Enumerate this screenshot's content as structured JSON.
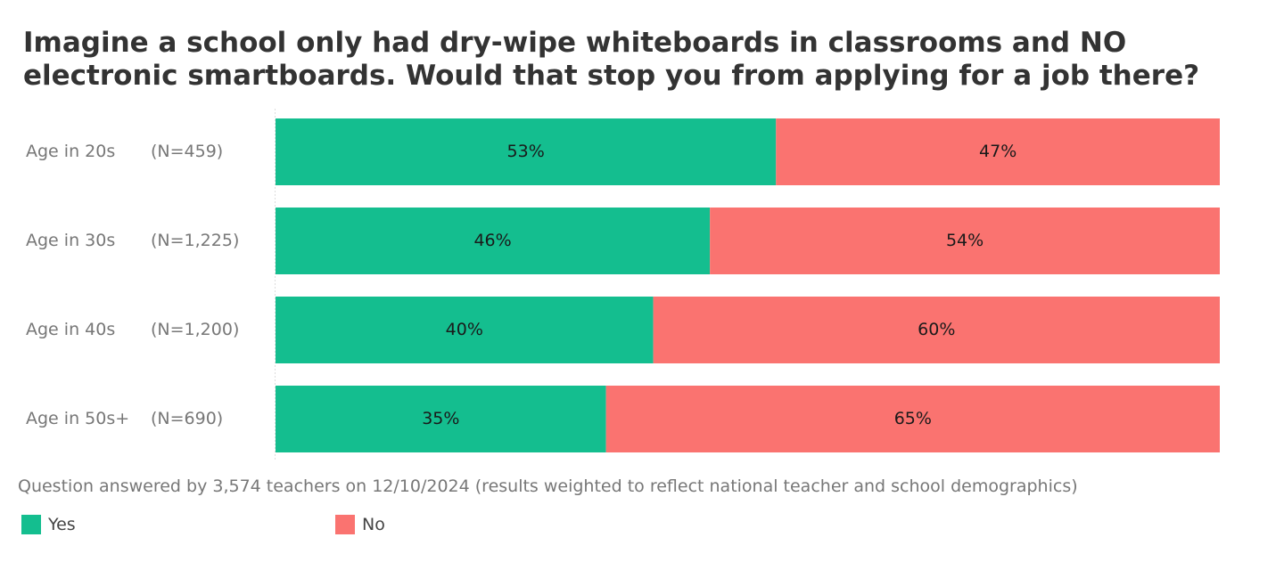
{
  "chart_data": {
    "type": "bar",
    "orientation": "horizontal",
    "stacked": true,
    "title": "Imagine a school only had dry-wipe whiteboards in classrooms and NO electronic smartboards. Would that stop you from applying for a job there?",
    "categories": [
      "Age in 20s",
      "Age in 30s",
      "Age in 40s",
      "Age in 50s+"
    ],
    "sample_sizes": [
      "(N=459)",
      "(N=1,225)",
      "(N=1,200)",
      "(N=690)"
    ],
    "series": [
      {
        "name": "Yes",
        "color": "#14be8f",
        "values": [
          53,
          46,
          40,
          35
        ],
        "labels": [
          "53%",
          "46%",
          "40%",
          "35%"
        ]
      },
      {
        "name": "No",
        "color": "#fa7370",
        "values": [
          47,
          54,
          60,
          65
        ],
        "labels": [
          "47%",
          "54%",
          "60%",
          "65%"
        ]
      }
    ],
    "xlim": [
      0,
      100
    ],
    "grid": false,
    "legend": "bottom-left",
    "footnote": "Question answered by 3,574 teachers on 12/10/2024 (results weighted to reflect national teacher and school demographics)"
  }
}
